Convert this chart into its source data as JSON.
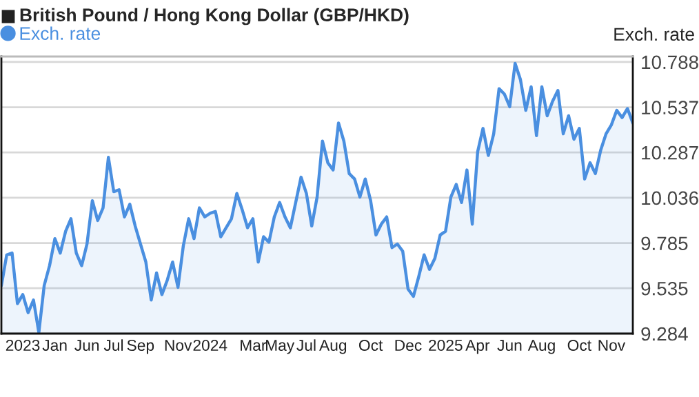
{
  "chart_data": {
    "type": "area",
    "title": "British Pound / Hong Kong Dollar (GBP/HKD)",
    "ylabel": "Exch. rate",
    "legend": "top left",
    "grid": "y",
    "categories": [
      null,
      null,
      null,
      null,
      "2023",
      null,
      null,
      null,
      null,
      null,
      "Jan",
      null,
      null,
      null,
      null,
      null,
      "Jun",
      null,
      null,
      null,
      null,
      "Jul",
      null,
      null,
      null,
      null,
      "Sep",
      null,
      null,
      null,
      null,
      null,
      null,
      "Nov",
      null,
      null,
      null,
      null,
      null,
      "2024",
      null,
      null,
      null,
      null,
      null,
      null,
      null,
      "Mar",
      null,
      null,
      null,
      null,
      "May",
      null,
      null,
      null,
      null,
      "Jul",
      null,
      null,
      null,
      null,
      "Aug",
      null,
      null,
      null,
      null,
      null,
      null,
      "Oct",
      null,
      null,
      null,
      null,
      null,
      null,
      "Dec",
      null,
      null,
      null,
      null,
      null,
      null,
      "2025",
      null,
      null,
      null,
      null,
      null,
      "Apr",
      null,
      null,
      null,
      null,
      null,
      "Jun",
      null,
      null,
      null,
      null,
      null,
      "Aug",
      null,
      null,
      null,
      null,
      null,
      null,
      "Oct",
      null,
      null,
      null,
      null,
      null,
      "Nov",
      null,
      null,
      null,
      null
    ],
    "series": [
      {
        "name": "Exch. rate",
        "color": "#4a8fe0",
        "values": [
          9.55,
          9.72,
          9.73,
          9.45,
          9.5,
          9.4,
          9.47,
          9.29,
          9.55,
          9.66,
          9.81,
          9.73,
          9.85,
          9.92,
          9.73,
          9.66,
          9.78,
          10.02,
          9.91,
          9.98,
          10.26,
          10.07,
          10.08,
          9.93,
          10.0,
          9.88,
          9.78,
          9.68,
          9.47,
          9.62,
          9.5,
          9.58,
          9.68,
          9.54,
          9.77,
          9.92,
          9.81,
          9.98,
          9.93,
          9.95,
          9.96,
          9.82,
          9.87,
          9.92,
          10.06,
          9.97,
          9.87,
          9.92,
          9.68,
          9.82,
          9.79,
          9.93,
          10.01,
          9.93,
          9.87,
          10.01,
          10.15,
          10.06,
          9.88,
          10.04,
          10.35,
          10.23,
          10.19,
          10.45,
          10.35,
          10.17,
          10.14,
          10.04,
          10.14,
          10.02,
          9.83,
          9.89,
          9.93,
          9.76,
          9.78,
          9.74,
          9.53,
          9.49,
          9.6,
          9.72,
          9.64,
          9.7,
          9.83,
          9.85,
          10.04,
          10.11,
          10.01,
          10.19,
          9.89,
          10.29,
          10.42,
          10.27,
          10.39,
          10.64,
          10.61,
          10.54,
          10.78,
          10.69,
          10.52,
          10.65,
          10.38,
          10.65,
          10.49,
          10.57,
          10.63,
          10.39,
          10.49,
          10.36,
          10.42,
          10.14,
          10.23,
          10.17,
          10.3,
          10.39,
          10.44,
          10.52,
          10.48,
          10.53,
          10.45
        ]
      }
    ],
    "ylim": [
      9.284,
      10.818
    ],
    "yticks": [
      9.284,
      9.535,
      9.785,
      10.036,
      10.287,
      10.537,
      10.788
    ]
  }
}
